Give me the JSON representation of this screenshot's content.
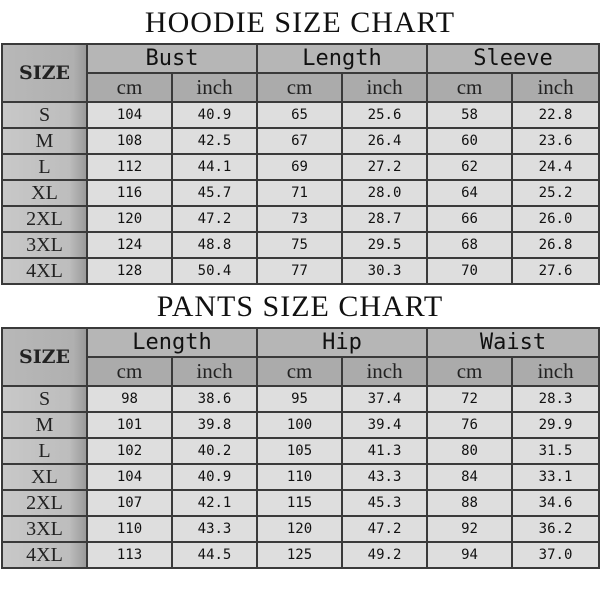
{
  "charts": [
    {
      "title": "HOODIE SIZE CHART",
      "size_label": "SIZE",
      "groups": [
        "Bust",
        "Length",
        "Sleeve"
      ],
      "units": [
        "cm",
        "inch"
      ],
      "rows": [
        {
          "size": "S",
          "values": [
            "104",
            "40.9",
            "65",
            "25.6",
            "58",
            "22.8"
          ]
        },
        {
          "size": "M",
          "values": [
            "108",
            "42.5",
            "67",
            "26.4",
            "60",
            "23.6"
          ]
        },
        {
          "size": "L",
          "values": [
            "112",
            "44.1",
            "69",
            "27.2",
            "62",
            "24.4"
          ]
        },
        {
          "size": "XL",
          "values": [
            "116",
            "45.7",
            "71",
            "28.0",
            "64",
            "25.2"
          ]
        },
        {
          "size": "2XL",
          "values": [
            "120",
            "47.2",
            "73",
            "28.7",
            "66",
            "26.0"
          ]
        },
        {
          "size": "3XL",
          "values": [
            "124",
            "48.8",
            "75",
            "29.5",
            "68",
            "26.8"
          ]
        },
        {
          "size": "4XL",
          "values": [
            "128",
            "50.4",
            "77",
            "30.3",
            "70",
            "27.6"
          ]
        }
      ]
    },
    {
      "title": "PANTS SIZE CHART",
      "size_label": "SIZE",
      "groups": [
        "Length",
        "Hip",
        "Waist"
      ],
      "units": [
        "cm",
        "inch"
      ],
      "rows": [
        {
          "size": "S",
          "values": [
            "98",
            "38.6",
            "95",
            "37.4",
            "72",
            "28.3"
          ]
        },
        {
          "size": "M",
          "values": [
            "101",
            "39.8",
            "100",
            "39.4",
            "76",
            "29.9"
          ]
        },
        {
          "size": "L",
          "values": [
            "102",
            "40.2",
            "105",
            "41.3",
            "80",
            "31.5"
          ]
        },
        {
          "size": "XL",
          "values": [
            "104",
            "40.9",
            "110",
            "43.3",
            "84",
            "33.1"
          ]
        },
        {
          "size": "2XL",
          "values": [
            "107",
            "42.1",
            "115",
            "45.3",
            "88",
            "34.6"
          ]
        },
        {
          "size": "3XL",
          "values": [
            "110",
            "43.3",
            "120",
            "47.2",
            "92",
            "36.2"
          ]
        },
        {
          "size": "4XL",
          "values": [
            "113",
            "44.5",
            "125",
            "49.2",
            "94",
            "37.0"
          ]
        }
      ]
    }
  ]
}
